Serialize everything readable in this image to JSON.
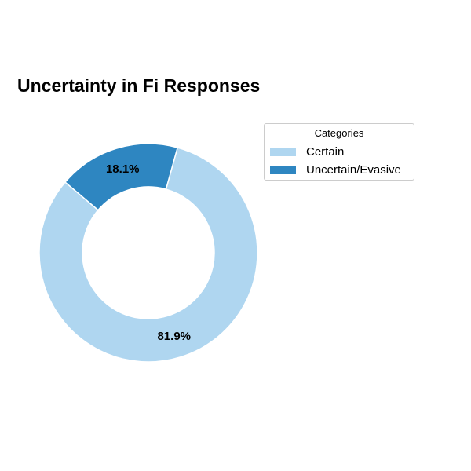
{
  "chart_data": {
    "type": "pie",
    "title": "Uncertainty in Fi Responses",
    "categories": [
      "Certain",
      "Uncertain/Evasive"
    ],
    "values": [
      81.9,
      18.1
    ],
    "value_labels": [
      "81.9%",
      "18.1%"
    ],
    "colors": [
      "#afd6f0",
      "#2e86c1"
    ],
    "donut": true,
    "legend": {
      "title": "Categories",
      "placement": "top-right"
    }
  }
}
